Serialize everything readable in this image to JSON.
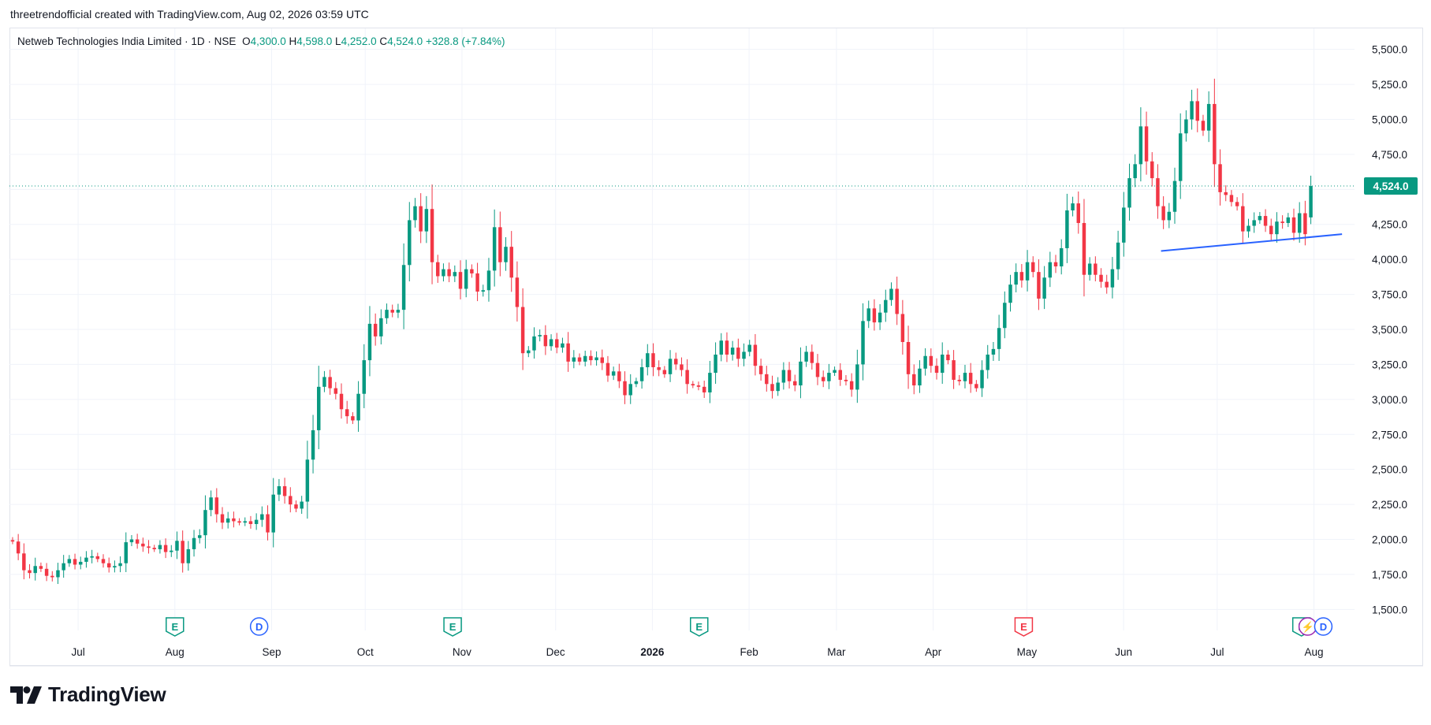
{
  "header": {
    "credit": "threetrendofficial created with TradingView.com, Aug 02, 2026 03:59 UTC"
  },
  "legend": {
    "symbol": "Netweb Technologies India Limited · 1D · NSE",
    "open_label": "O",
    "open": "4,300.0",
    "high_label": "H",
    "high": "4,598.0",
    "low_label": "L",
    "low": "4,252.0",
    "close_label": "C",
    "close": "4,524.0",
    "change": "+328.8 (+7.84%)"
  },
  "brand": {
    "name": "TradingView",
    "icon": "tradingview-logo-icon"
  },
  "colors": {
    "up": "#089981",
    "down": "#f23645",
    "trendline": "#2962ff",
    "last_price": "#089981",
    "grid": "#f0f3fa",
    "text": "#131722"
  },
  "chart_data": {
    "type": "candlestick",
    "title": "Netweb Technologies India Limited · 1D · NSE",
    "ylim": [
      1350,
      5650
    ],
    "y_ticks": [
      1500,
      1750,
      2000,
      2250,
      2500,
      2750,
      3000,
      3250,
      3500,
      3750,
      4000,
      4250,
      4500,
      4750,
      5000,
      5250,
      5500
    ],
    "y_tick_labels": [
      "1,500.0",
      "1,750.0",
      "2,000.0",
      "2,250.0",
      "2,500.0",
      "2,750.0",
      "3,000.0",
      "3,250.0",
      "3,500.0",
      "3,750.0",
      "4,000.0",
      "4,250.0",
      "4,500.0",
      "4,750.0",
      "5,000.0",
      "5,250.0",
      "5,500.0"
    ],
    "x_range": [
      "2025-06-09",
      "2026-08-14"
    ],
    "x_ticks": [
      {
        "date": "2025-07-01",
        "label": "Jul",
        "bold": false
      },
      {
        "date": "2025-08-01",
        "label": "Aug",
        "bold": false
      },
      {
        "date": "2025-09-01",
        "label": "Sep",
        "bold": false
      },
      {
        "date": "2025-10-01",
        "label": "Oct",
        "bold": false
      },
      {
        "date": "2025-11-01",
        "label": "Nov",
        "bold": false
      },
      {
        "date": "2025-12-01",
        "label": "Dec",
        "bold": false
      },
      {
        "date": "2026-01-01",
        "label": "2026",
        "bold": true
      },
      {
        "date": "2026-02-01",
        "label": "Feb",
        "bold": false
      },
      {
        "date": "2026-03-01",
        "label": "Mar",
        "bold": false
      },
      {
        "date": "2026-04-01",
        "label": "Apr",
        "bold": false
      },
      {
        "date": "2026-05-01",
        "label": "May",
        "bold": false
      },
      {
        "date": "2026-06-01",
        "label": "Jun",
        "bold": false
      },
      {
        "date": "2026-07-01",
        "label": "Jul",
        "bold": false
      },
      {
        "date": "2026-08-01",
        "label": "Aug",
        "bold": false
      }
    ],
    "last_price": 4524.0,
    "last_price_label": "4,524.0",
    "grid": true,
    "markers": [
      {
        "date": "2025-08-01",
        "letter": "E",
        "kind": "earnings",
        "color": "#089981"
      },
      {
        "date": "2025-08-28",
        "letter": "D",
        "kind": "dividend",
        "color": "#2962ff"
      },
      {
        "date": "2025-10-29",
        "letter": "E",
        "kind": "earnings",
        "color": "#089981"
      },
      {
        "date": "2026-01-16",
        "letter": "E",
        "kind": "earnings",
        "color": "#089981"
      },
      {
        "date": "2026-04-30",
        "letter": "E",
        "kind": "earnings",
        "color": "#f23645"
      },
      {
        "date": "2026-07-28",
        "letter": "E",
        "kind": "earnings",
        "color": "#089981"
      },
      {
        "date": "2026-07-30",
        "letter": "⚡",
        "kind": "split",
        "color": "#9c27b0"
      },
      {
        "date": "2026-08-04",
        "letter": "D",
        "kind": "dividend",
        "color": "#2962ff"
      }
    ],
    "trendline": {
      "start": {
        "date": "2026-06-13",
        "price": 4060
      },
      "end": {
        "date": "2026-08-10",
        "price": 4180
      }
    },
    "closes": [
      [
        1985,
        1900,
        1780,
        1760,
        1810,
        1790,
        1740,
        1730,
        1780,
        1830,
        1860,
        1820,
        1840,
        1870,
        1880,
        1860,
        1830,
        1800,
        1810,
        1830,
        1980,
        2000,
        1970,
        1950,
        1940,
        1930,
        1960,
        1910,
        1920,
        1990,
        1830,
        1930,
        2010,
        2030,
        2210,
        2300,
        2180,
        2120,
        2150,
        2130,
        2120,
        2130,
        2110,
        2140,
        2180,
        2050,
        2320,
        2380,
        2310,
        2250,
        2220,
        2270,
        2570,
        2780
      ],
      [
        3090,
        3160,
        3080,
        3040,
        2930,
        2880,
        2850,
        3040,
        3280,
        3540,
        3450,
        3580,
        3640,
        3620,
        3640,
        3960,
        4280,
        4380,
        4200,
        4360,
        3980,
        3880,
        3930,
        3880,
        3910,
        3790,
        3930,
        3900,
        3770,
        3780,
        3920,
        4230,
        3980,
        4090,
        3870,
        3660,
        3330,
        3350,
        3450,
        3460,
        3380,
        3430,
        3370,
        3400,
        3270,
        3300,
        3270,
        3310,
        3280,
        3300
      ],
      [
        3260,
        3170,
        3200,
        3130,
        3030,
        3110,
        3130,
        3230,
        3330,
        3230,
        3210,
        3180,
        3290,
        3250,
        3210,
        3110,
        3100,
        3090,
        3050,
        3190,
        3320,
        3420,
        3320,
        3370,
        3290,
        3340,
        3390,
        3240,
        3180,
        3110,
        3060,
        3120,
        3210,
        3130,
        3100,
        3270,
        3340,
        3260,
        3160,
        3130,
        3190,
        3210,
        3140,
        3130,
        3070,
        3250,
        3560,
        3650,
        3550,
        3620,
        3710
      ],
      [
        3790,
        3610,
        3410,
        3180,
        3100,
        3220,
        3310,
        3240,
        3190,
        3320,
        3280,
        3140,
        3130,
        3190,
        3110,
        3080,
        3210,
        3320,
        3360,
        3510,
        3690,
        3820,
        3910,
        3850,
        3980,
        3910,
        3720,
        3870,
        3980,
        3950,
        4080,
        4350,
        4400,
        4260,
        3890,
        3970,
        3890,
        3840,
        3800,
        3930,
        4120,
        4370,
        4580,
        4680,
        4950,
        4700,
        4580,
        4380,
        4280,
        4340,
        4560,
        4900,
        5000,
        5130,
        4990,
        4920,
        5110,
        4680,
        4480,
        4460,
        4410,
        4380,
        4200,
        4240,
        4280,
        4310,
        4240,
        4180,
        4270,
        4260,
        4300,
        4190,
        4330,
        4180,
        4524
      ]
    ]
  }
}
